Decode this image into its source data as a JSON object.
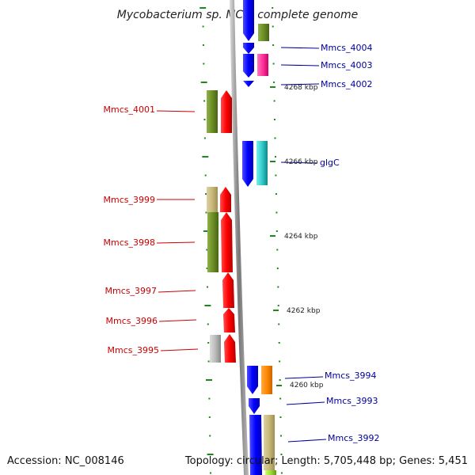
{
  "title": "Mycobacterium sp. MCS, complete genome",
  "footer": {
    "accession": "Accession: NC_008146",
    "topology": "Topology: circular; Length: 5,705,448 bp; Genes: 5,451"
  },
  "scale_labels": [
    "4268 kbp",
    "4266 kbp",
    "4264 kbp",
    "4262 kbp",
    "4260 kbp"
  ],
  "genes_left": [
    {
      "name": "Mmcs_4001"
    },
    {
      "name": "Mmcs_3999"
    },
    {
      "name": "Mmcs_3998"
    },
    {
      "name": "Mmcs_3997"
    },
    {
      "name": "Mmcs_3996"
    },
    {
      "name": "Mmcs_3995"
    }
  ],
  "genes_right": [
    {
      "name": "Mmcs_4004"
    },
    {
      "name": "Mmcs_4003"
    },
    {
      "name": "Mmcs_4002"
    },
    {
      "name": "glgC"
    },
    {
      "name": "Mmcs_3994"
    },
    {
      "name": "Mmcs_3993"
    },
    {
      "name": "Mmcs_3992"
    }
  ],
  "colors": {
    "forward_strand": "#ff0000",
    "reverse_strand": "#0000ff",
    "backbone": "#8c8c8c",
    "tick": "#1a8a1a",
    "olive": "#6b8e23",
    "khaki": "#c8b87a",
    "magenta": "#ff3399",
    "cyan": "#33cccc",
    "orange": "#ff8800",
    "gray": "#bbbbbb",
    "label_left": "#cc0000",
    "label_right": "#000099"
  }
}
